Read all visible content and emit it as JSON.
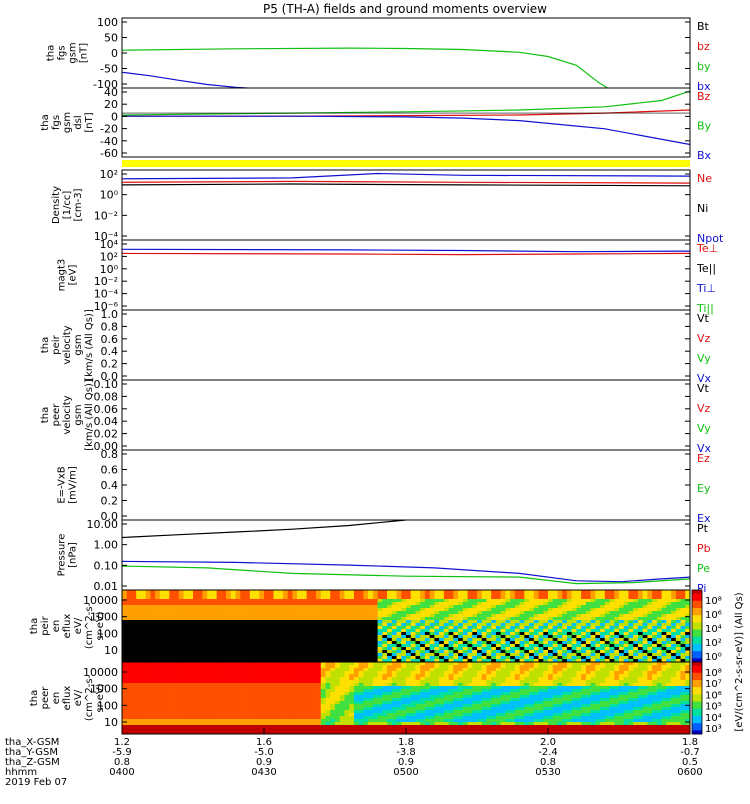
{
  "title": "P5 (TH-A) fields and ground moments overview",
  "colors": {
    "black": "#000000",
    "red": "#e01010",
    "green": "#10c010",
    "blue": "#1010d0",
    "yellow": "#ffff00"
  },
  "chart_data": [
    {
      "id": "fgs_gsm",
      "type": "line",
      "ylabel": [
        "tha",
        "fgs",
        "gsm",
        "[nT]"
      ],
      "ylim": [
        -100,
        100
      ],
      "yticks": [
        "100",
        "50",
        "0",
        "-50",
        "-100"
      ],
      "legend": [
        {
          "name": "Bt",
          "color": "black"
        },
        {
          "name": "bz",
          "color": "red"
        },
        {
          "name": "by",
          "color": "green"
        },
        {
          "name": "bx",
          "color": "blue"
        }
      ],
      "series": [
        {
          "name": "by",
          "color": "green",
          "x": [
            0,
            0.2,
            0.4,
            0.5,
            0.6,
            0.7,
            0.75,
            0.8,
            0.84,
            0.855
          ],
          "y": [
            8,
            12,
            14,
            13,
            10,
            2,
            -10,
            -35,
            -85,
            -100
          ]
        },
        {
          "name": "bx",
          "color": "blue",
          "x": [
            0,
            0.05,
            0.1,
            0.15,
            0.2,
            0.22
          ],
          "y": [
            -55,
            -65,
            -78,
            -90,
            -98,
            -100
          ]
        }
      ]
    },
    {
      "id": "fgs_gse",
      "type": "line",
      "ylabel": [
        "tha",
        "fgs",
        "gsm",
        "dsl",
        "[nT]"
      ],
      "ylim": [
        -70,
        40
      ],
      "yticks": [
        "40",
        "20",
        "0",
        "-20",
        "-40",
        "-60"
      ],
      "legend": [
        {
          "name": "Bz",
          "color": "red"
        },
        {
          "name": "By",
          "color": "green"
        },
        {
          "name": "Bx",
          "color": "blue"
        }
      ],
      "series": [
        {
          "name": "By",
          "color": "green",
          "x": [
            0,
            0.3,
            0.5,
            0.7,
            0.85,
            0.95,
            1.0
          ],
          "y": [
            -3,
            0,
            2,
            5,
            10,
            20,
            35
          ]
        },
        {
          "name": "Bz",
          "color": "red",
          "x": [
            0,
            0.3,
            0.5,
            0.7,
            0.85,
            1.0
          ],
          "y": [
            -5,
            -5,
            -4,
            -3,
            0,
            5
          ]
        },
        {
          "name": "Bx",
          "color": "blue",
          "x": [
            0,
            0.3,
            0.5,
            0.6,
            0.7,
            0.85,
            1.0
          ],
          "y": [
            -5,
            -5,
            -6,
            -8,
            -12,
            -25,
            -50
          ]
        }
      ]
    },
    {
      "id": "density",
      "type": "line",
      "ylabel": [
        "Density",
        "[1/cc]",
        "[cm-3]"
      ],
      "yscale": "log",
      "ylim": [
        -5,
        3
      ],
      "yticks": [
        "10²",
        "10⁰",
        "10⁻²",
        "10⁻⁴"
      ],
      "legend": [
        {
          "name": "Ne",
          "color": "red"
        },
        {
          "name": "Ni",
          "color": "black"
        },
        {
          "name": "Npot",
          "color": "blue"
        }
      ],
      "series": [
        {
          "name": "Npot",
          "color": "blue",
          "x": [
            0,
            0.3,
            0.45,
            0.6,
            1.0
          ],
          "y": [
            2.0,
            2.1,
            2.6,
            2.4,
            2.3
          ]
        },
        {
          "name": "Ne",
          "color": "red",
          "x": [
            0,
            0.3,
            0.6,
            1.0
          ],
          "y": [
            1.6,
            1.7,
            1.6,
            1.5
          ]
        },
        {
          "name": "Ni",
          "color": "black",
          "x": [
            0,
            0.3,
            0.6,
            1.0
          ],
          "y": [
            1.3,
            1.4,
            1.3,
            1.2
          ]
        }
      ]
    },
    {
      "id": "temperature",
      "type": "line",
      "ylabel": [
        "magt3",
        "[eV]"
      ],
      "yscale": "log",
      "ylim": [
        -7,
        5
      ],
      "yticks": [
        "10⁴",
        "10²",
        "10⁰",
        "10⁻²",
        "10⁻⁴",
        "10⁻⁶"
      ],
      "legend": [
        {
          "name": "Te⊥",
          "color": "red"
        },
        {
          "name": "Te||",
          "color": "black"
        },
        {
          "name": "Ti⊥",
          "color": "blue"
        },
        {
          "name": "Ti||",
          "color": "green"
        }
      ],
      "series": [
        {
          "name": "Ti⊥",
          "color": "blue",
          "x": [
            0,
            0.4,
            0.6,
            0.8,
            1.0
          ],
          "y": [
            3.4,
            3.3,
            3.2,
            3.0,
            3.1
          ]
        },
        {
          "name": "Te⊥",
          "color": "red",
          "x": [
            0,
            0.4,
            0.6,
            0.8,
            1.0
          ],
          "y": [
            2.7,
            2.6,
            2.5,
            2.6,
            2.7
          ]
        }
      ]
    },
    {
      "id": "peir_velocity",
      "type": "line",
      "ylabel": [
        "tha",
        "peir",
        "velocity",
        "gsm",
        "[km/s (All Qs)]"
      ],
      "ylim": [
        0,
        1
      ],
      "yticks": [
        "1.0",
        "0.8",
        "0.6",
        "0.4",
        "0.2",
        "0.0"
      ],
      "legend": [
        {
          "name": "Vt",
          "color": "black"
        },
        {
          "name": "Vz",
          "color": "red"
        },
        {
          "name": "Vy",
          "color": "green"
        },
        {
          "name": "Vx",
          "color": "blue"
        }
      ],
      "series": []
    },
    {
      "id": "peer_velocity",
      "type": "line",
      "ylabel": [
        "tha",
        "peer",
        "velocity",
        "gsm",
        "[km/s (All Qs)]"
      ],
      "ylim": [
        0,
        0.1
      ],
      "yticks": [
        "0.10",
        "0.08",
        "0.06",
        "0.04",
        "0.02",
        "0.00"
      ],
      "legend": [
        {
          "name": "Vt",
          "color": "black"
        },
        {
          "name": "Vz",
          "color": "red"
        },
        {
          "name": "Vy",
          "color": "green"
        },
        {
          "name": "Vx",
          "color": "blue"
        }
      ],
      "series": []
    },
    {
      "id": "efield",
      "type": "line",
      "ylabel": [
        "E=-VxB",
        "[mV/m]"
      ],
      "ylim": [
        0,
        1
      ],
      "yticks": [
        "0.8",
        "0.6",
        "0.4",
        "0.2",
        "0.0"
      ],
      "legend": [
        {
          "name": "Ez",
          "color": "red"
        },
        {
          "name": "Ey",
          "color": "green"
        },
        {
          "name": "Ex",
          "color": "blue"
        }
      ],
      "series": []
    },
    {
      "id": "pressure",
      "type": "line",
      "ylabel": [
        "Pressure",
        "[nPa]"
      ],
      "yscale": "log",
      "ylim": [
        -2.2,
        1.6
      ],
      "yticks": [
        "10.00",
        "1.00",
        "0.10",
        "0.01"
      ],
      "legend": [
        {
          "name": "Pt",
          "color": "black"
        },
        {
          "name": "Pb",
          "color": "red"
        },
        {
          "name": "Pe",
          "color": "green"
        },
        {
          "name": "Pi",
          "color": "blue"
        }
      ],
      "series": [
        {
          "name": "Pt",
          "color": "black",
          "x": [
            0,
            0.1,
            0.2,
            0.3,
            0.4,
            0.5
          ],
          "y": [
            0.65,
            0.8,
            0.95,
            1.1,
            1.3,
            1.6
          ]
        },
        {
          "name": "Pi",
          "color": "blue",
          "x": [
            0,
            0.2,
            0.4,
            0.55,
            0.7,
            0.8,
            0.88,
            0.95,
            1.0
          ],
          "y": [
            -0.65,
            -0.7,
            -0.85,
            -1.0,
            -1.3,
            -1.7,
            -1.75,
            -1.6,
            -1.5
          ]
        },
        {
          "name": "Pe",
          "color": "green",
          "x": [
            0,
            0.15,
            0.3,
            0.5,
            0.7,
            0.8,
            0.9,
            1.0
          ],
          "y": [
            -0.9,
            -1.0,
            -1.3,
            -1.45,
            -1.5,
            -1.85,
            -1.8,
            -1.6
          ]
        }
      ]
    },
    {
      "id": "peir_spectrogram",
      "type": "heatmap",
      "ylabel": [
        "tha",
        "peir",
        "en",
        "eflux",
        "eV/",
        "(cm^2-s-",
        "sr-eV)"
      ],
      "yscale": "log",
      "yticks": [
        "10000",
        "1000",
        "100",
        "10"
      ],
      "colorbar_ticks": [
        "10⁸",
        "10⁶",
        "10⁴",
        "10²",
        "10⁰"
      ]
    },
    {
      "id": "peer_spectrogram",
      "type": "heatmap",
      "ylabel": [
        "tha",
        "peer",
        "en",
        "eflux",
        "eV/",
        "(cm^2-s-",
        "sr-eV)"
      ],
      "yscale": "log",
      "yticks": [
        "10000",
        "1000",
        "100",
        "10"
      ],
      "colorbar_ticks": [
        "10⁸",
        "10⁷",
        "10⁶",
        "10⁵",
        "10⁴",
        "10³"
      ]
    }
  ],
  "colorbar_label": "[eV/(cm^2-s-sr-eV)] (All Qs)",
  "colorbar_label_peer": "eflux[eV/(cm^2-s-sr-eV)]",
  "xaxis": {
    "row_labels": [
      "tha_X-GSM",
      "tha_Y-GSM",
      "tha_Z-GSM",
      "hhmm",
      "2019 Feb 07"
    ],
    "ticks": [
      {
        "values": [
          "1.2",
          "-5.9",
          "0.8",
          "0400"
        ]
      },
      {
        "values": [
          "1.6",
          "-5.0",
          "0.9",
          "0430"
        ]
      },
      {
        "values": [
          "1.8",
          "-3.8",
          "0.9",
          "0500"
        ]
      },
      {
        "values": [
          "2.0",
          "-2.4",
          "0.8",
          "0530"
        ]
      },
      {
        "values": [
          "1.8",
          "-0.7",
          "0.5",
          "0600"
        ]
      }
    ]
  }
}
